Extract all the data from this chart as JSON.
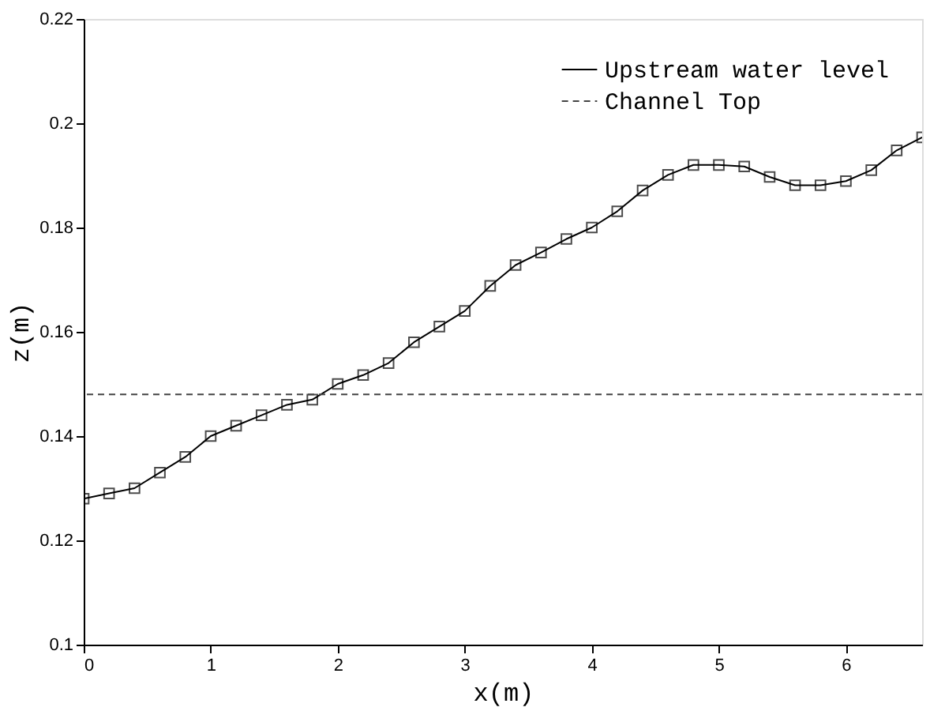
{
  "chart_data": {
    "type": "line",
    "xlabel": "x(m)",
    "ylabel": "z(m)",
    "x": [
      0,
      0.2,
      0.4,
      0.6,
      0.8,
      1.0,
      1.2,
      1.4,
      1.6,
      1.8,
      2.0,
      2.2,
      2.4,
      2.6,
      2.8,
      3.0,
      3.2,
      3.4,
      3.6,
      3.8,
      4.0,
      4.2,
      4.4,
      4.6,
      4.8,
      5.0,
      5.2,
      5.4,
      5.6,
      5.8,
      6.0,
      6.2,
      6.4,
      6.6
    ],
    "series": [
      {
        "name": "Upstream water level",
        "color": "#000000",
        "values": [
          0.128,
          0.129,
          0.13,
          0.133,
          0.136,
          0.14,
          0.142,
          0.144,
          0.146,
          0.147,
          0.15,
          0.1517,
          0.154,
          0.158,
          0.161,
          0.164,
          0.1688,
          0.1728,
          0.1752,
          0.1778,
          0.18,
          0.1831,
          0.1871,
          0.1901,
          0.192,
          0.192,
          0.1917,
          0.1897,
          0.1881,
          0.1881,
          0.1889,
          0.191,
          0.1948,
          0.1973
        ]
      }
    ],
    "ref_lines": [
      {
        "axis": "y",
        "value": 0.148,
        "label": "Channel Top",
        "color": "#444444",
        "line_style": "dashed"
      }
    ],
    "xlim": [
      0,
      6.6
    ],
    "xticks": [
      0,
      1,
      2,
      3,
      4,
      5,
      6
    ],
    "ylim": [
      0.1,
      0.22
    ],
    "yticks": [
      0.1,
      0.12,
      0.14,
      0.16,
      0.18,
      0.2,
      0.22
    ],
    "marker": "square",
    "line_style": "solid",
    "grid": false,
    "legend": "top right"
  }
}
